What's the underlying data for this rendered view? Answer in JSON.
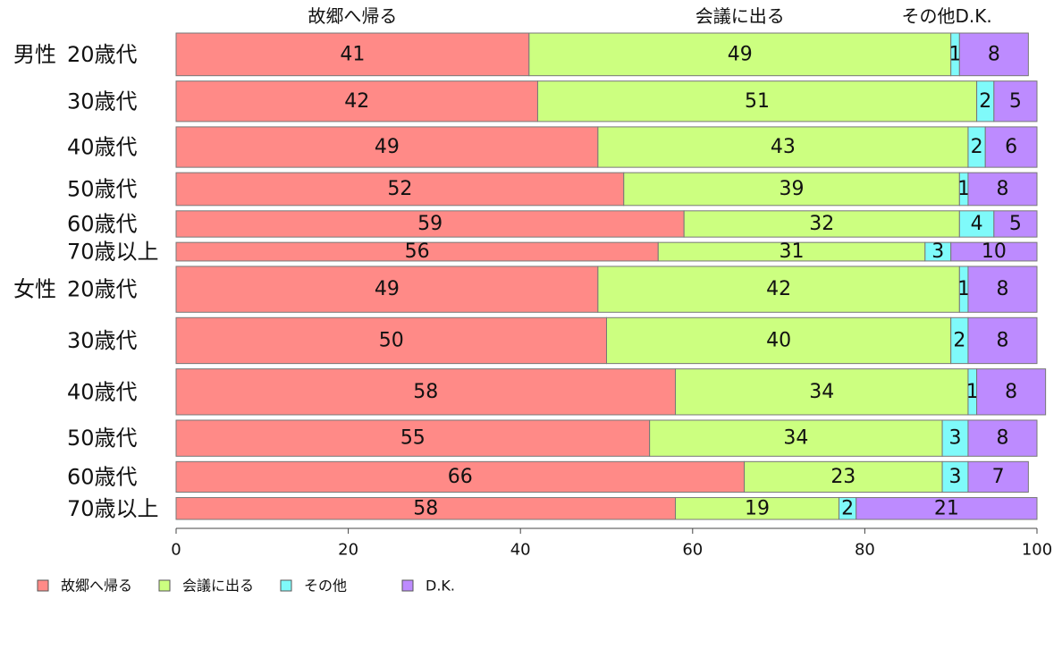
{
  "chart_data": {
    "type": "bar",
    "orientation": "horizontal",
    "stacked": true,
    "categories": [
      {
        "group": "男性",
        "label": "20歳代"
      },
      {
        "group": "",
        "label": "30歳代"
      },
      {
        "group": "",
        "label": "40歳代"
      },
      {
        "group": "",
        "label": "50歳代"
      },
      {
        "group": "",
        "label": "60歳代"
      },
      {
        "group": "",
        "label": "70歳以上"
      },
      {
        "group": "女性",
        "label": "20歳代"
      },
      {
        "group": "",
        "label": "30歳代"
      },
      {
        "group": "",
        "label": "40歳代"
      },
      {
        "group": "",
        "label": "50歳代"
      },
      {
        "group": "",
        "label": "60歳代"
      },
      {
        "group": "",
        "label": "70歳以上"
      }
    ],
    "row_weights": [
      78,
      74,
      74,
      60,
      48,
      34,
      84,
      84,
      84,
      66,
      56,
      40
    ],
    "series": [
      {
        "name": "故郷へ帰る",
        "color": "#ff8a87",
        "values": [
          41,
          42,
          49,
          52,
          59,
          56,
          49,
          50,
          58,
          55,
          66,
          58
        ]
      },
      {
        "name": "会議に出る",
        "color": "#ccff80",
        "values": [
          49,
          51,
          43,
          39,
          32,
          31,
          42,
          40,
          34,
          34,
          23,
          19
        ]
      },
      {
        "name": "その他",
        "color": "#7ffafa",
        "values": [
          1,
          2,
          2,
          1,
          4,
          3,
          1,
          2,
          1,
          3,
          3,
          2
        ]
      },
      {
        "name": "D.K.",
        "color": "#bd8bff",
        "values": [
          8,
          5,
          6,
          8,
          5,
          10,
          8,
          8,
          8,
          8,
          7,
          21
        ]
      }
    ],
    "top_labels": [
      "故郷へ帰る",
      "会議に出る",
      "その他",
      "D.K."
    ],
    "xlim": [
      0,
      100
    ],
    "xticks": [
      0,
      20,
      40,
      60,
      80,
      100
    ],
    "legend_position": "bottom-left",
    "grid": false
  }
}
